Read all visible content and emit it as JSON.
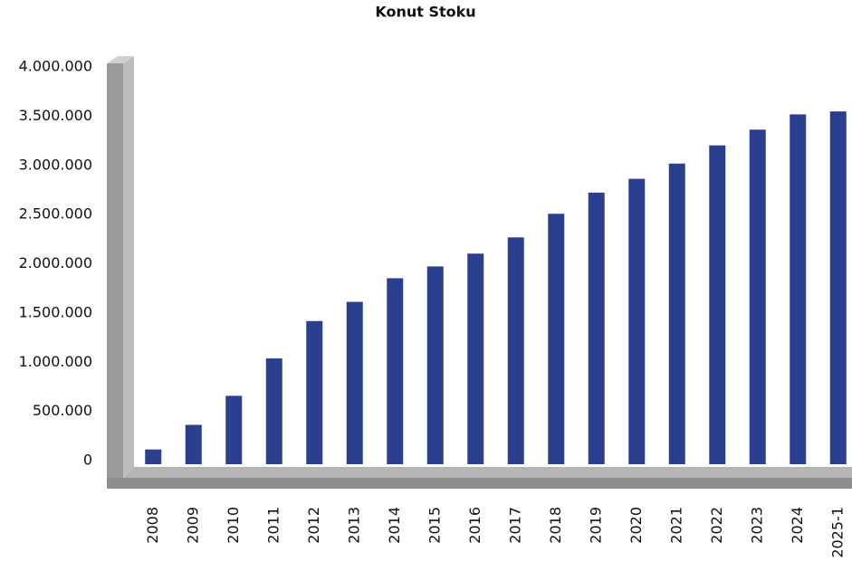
{
  "chart_data": {
    "type": "bar",
    "title": "Konut Stoku",
    "categories": [
      "2008",
      "2009",
      "2010",
      "2011",
      "2012",
      "2013",
      "2014",
      "2015",
      "2016",
      "2017",
      "2018",
      "2019",
      "2020",
      "2021",
      "2022",
      "2023",
      "2024",
      "2025-1"
    ],
    "values": [
      150000,
      400000,
      695000,
      1075000,
      1455000,
      1650000,
      1890000,
      2010000,
      2140000,
      2305000,
      2545000,
      2760000,
      2900000,
      3055000,
      3240000,
      3400000,
      3555000,
      3585000
    ],
    "color": "#2b3f8f",
    "ylim": [
      0,
      4000000
    ],
    "yticks": [
      0,
      {
        "value": 500000,
        "label": "500.000"
      },
      {
        "value": 1000000,
        "label": "1.000.000"
      },
      {
        "value": 1500000,
        "label": "1.500.000"
      },
      {
        "value": 2000000,
        "label": "2.000.000"
      },
      {
        "value": 2500000,
        "label": "2.500.000"
      },
      {
        "value": 3000000,
        "label": "3.000.000"
      },
      {
        "value": 3500000,
        "label": "3.500.000"
      },
      {
        "value": 4000000,
        "label": "4.000.000"
      }
    ],
    "grid": false
  }
}
